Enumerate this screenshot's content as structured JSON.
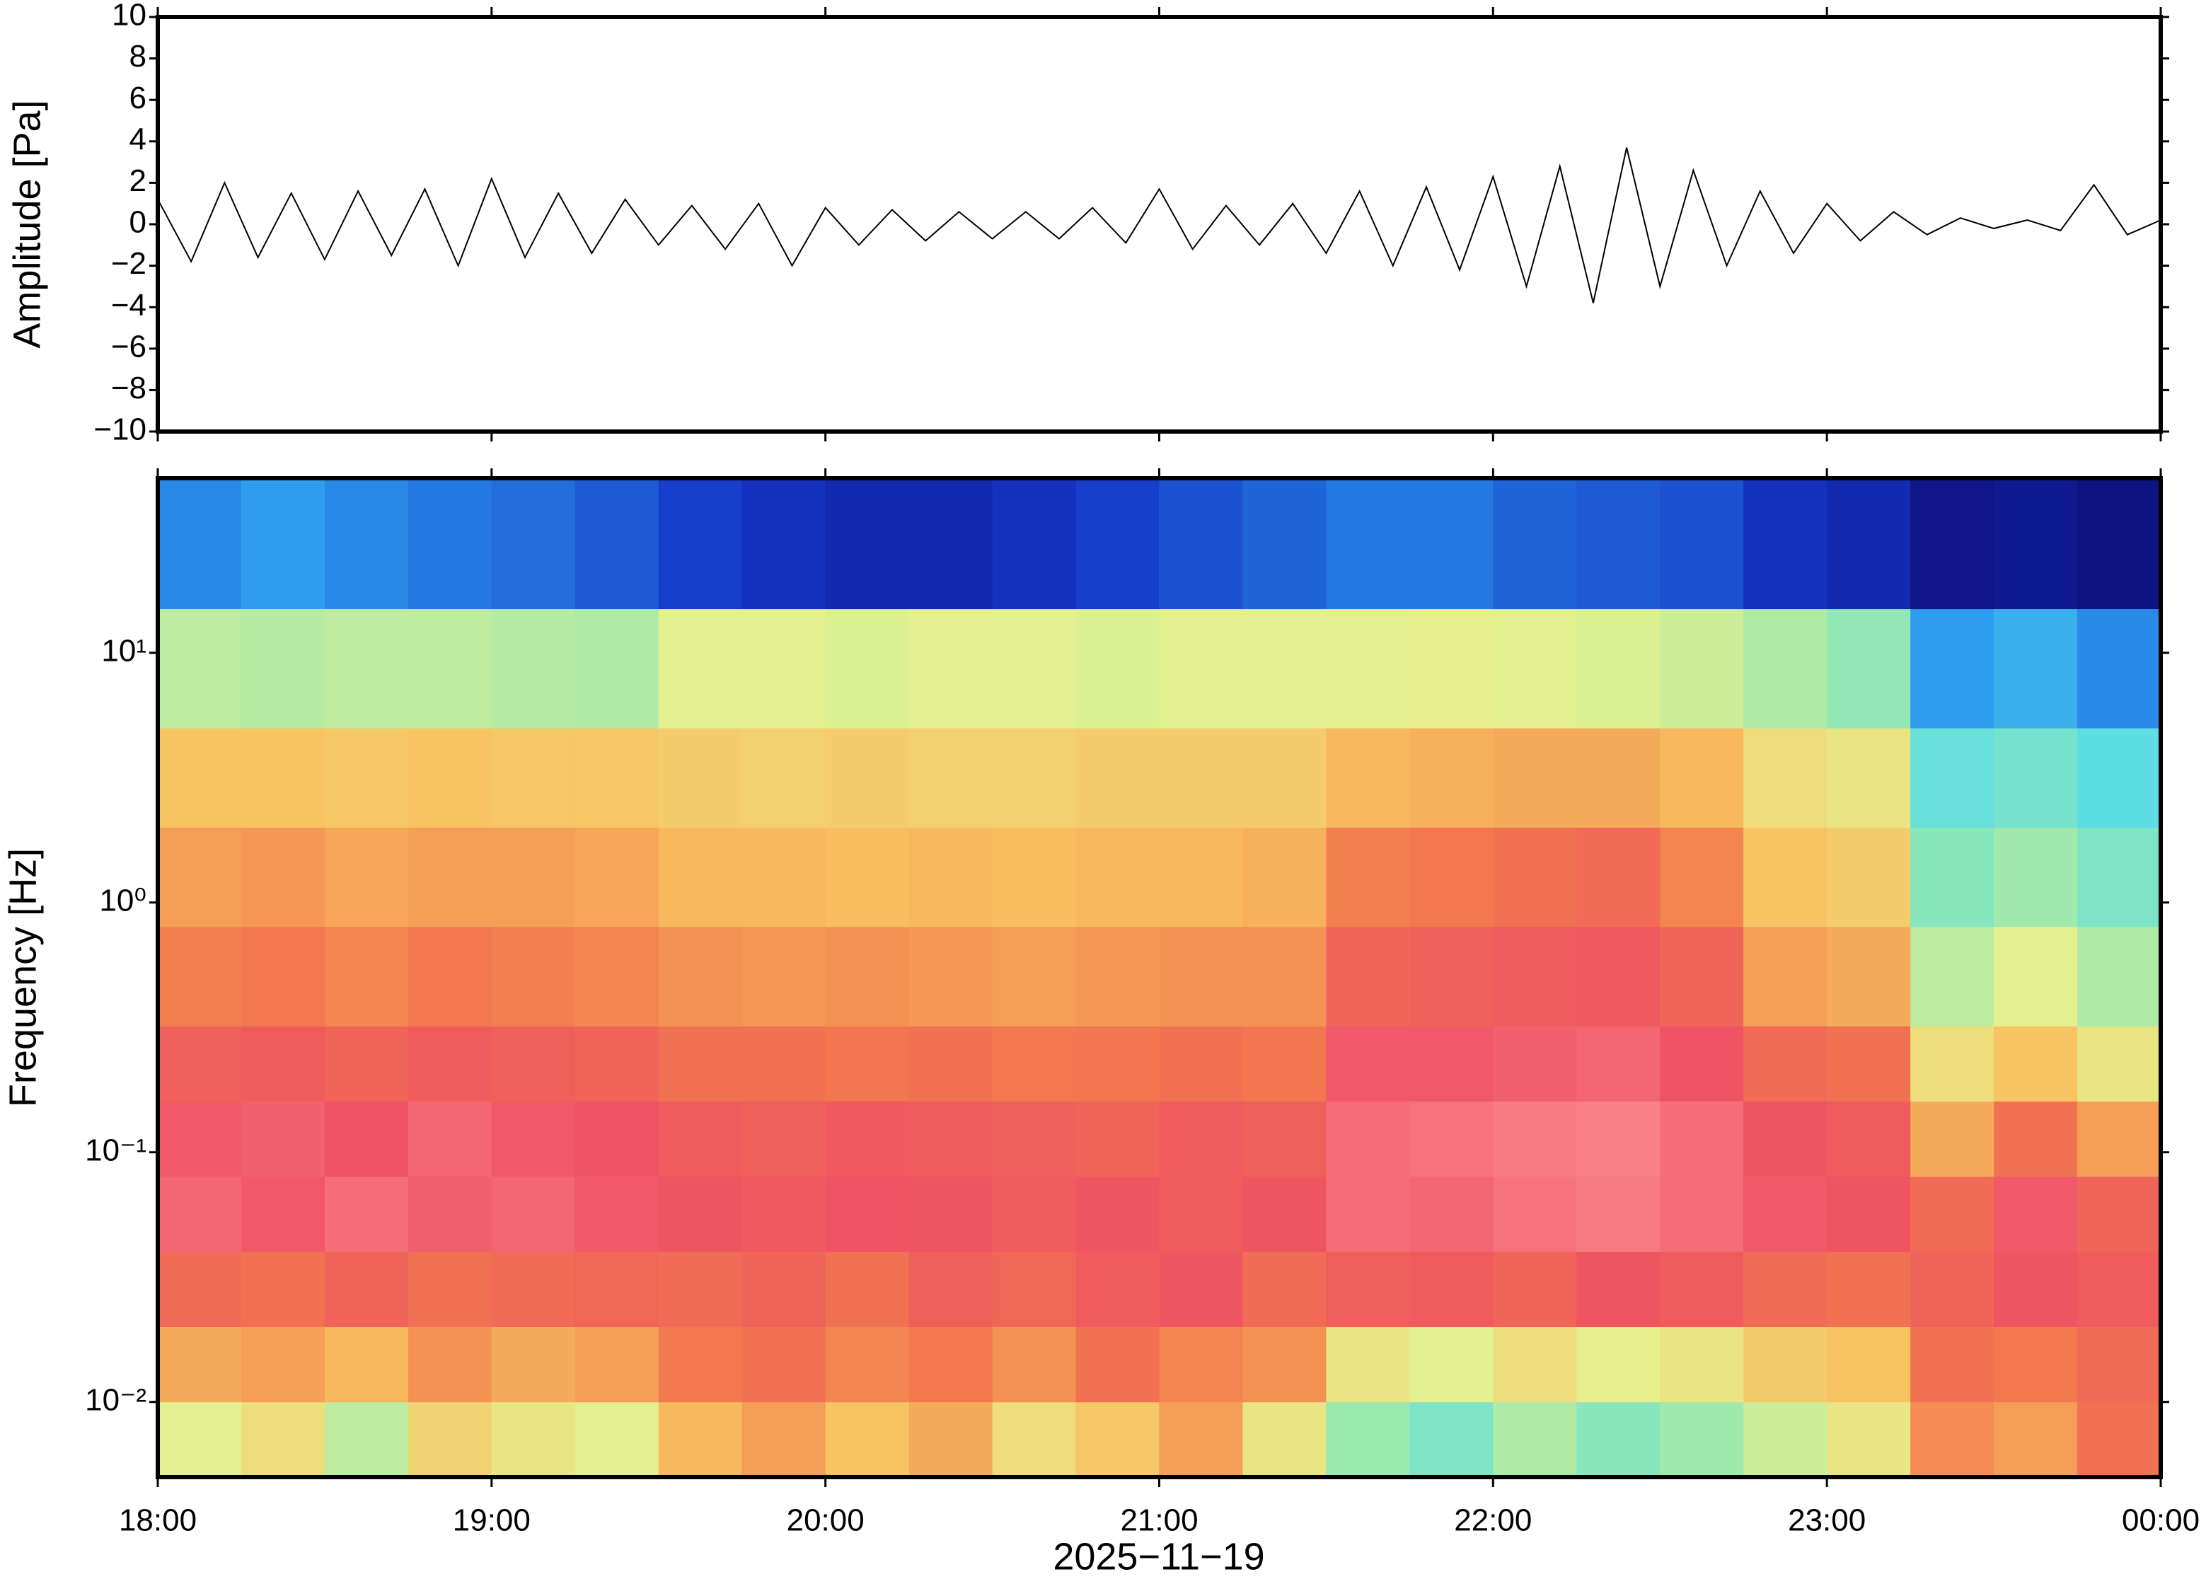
{
  "chart_data": [
    {
      "type": "line",
      "ylabel": "Amplitude [Pa]",
      "color": "#000000",
      "x": [
        18.0,
        18.1,
        18.2,
        18.3,
        18.4,
        18.5,
        18.6,
        18.7,
        18.8,
        18.9,
        19.0,
        19.1,
        19.2,
        19.3,
        19.4,
        19.5,
        19.6,
        19.7,
        19.8,
        19.9,
        20.0,
        20.1,
        20.2,
        20.3,
        20.4,
        20.5,
        20.6,
        20.7,
        20.8,
        20.9,
        21.0,
        21.1,
        21.2,
        21.3,
        21.4,
        21.5,
        21.6,
        21.7,
        21.8,
        21.9,
        22.0,
        22.1,
        22.2,
        22.3,
        22.4,
        22.5,
        22.6,
        22.7,
        22.8,
        22.9,
        23.0,
        23.1,
        23.2,
        23.3,
        23.4,
        23.5,
        23.6,
        23.7,
        23.8,
        23.9,
        24.0
      ],
      "values": [
        1.2,
        -1.8,
        2.0,
        -1.6,
        1.5,
        -1.7,
        1.6,
        -1.5,
        1.7,
        -2.0,
        2.2,
        -1.6,
        1.5,
        -1.4,
        1.2,
        -1.0,
        0.9,
        -1.2,
        1.0,
        -2.0,
        0.8,
        -1.0,
        0.7,
        -0.8,
        0.6,
        -0.7,
        0.6,
        -0.7,
        0.8,
        -0.9,
        1.7,
        -1.2,
        0.9,
        -1.0,
        1.0,
        -1.4,
        1.6,
        -2.0,
        1.8,
        -2.2,
        2.3,
        -3.0,
        2.8,
        -3.8,
        3.7,
        -3.0,
        2.6,
        -2.0,
        1.6,
        -1.4,
        1.0,
        -0.8,
        0.6,
        -0.5,
        0.3,
        -0.2,
        0.2,
        -0.3,
        1.9,
        -0.5,
        0.2
      ],
      "xlim": [
        18,
        24
      ],
      "ylim": [
        -10,
        10
      ],
      "yticks": [
        {
          "value": -10,
          "label": "−10"
        },
        {
          "value": -8,
          "label": "−8"
        },
        {
          "value": -6,
          "label": "−6"
        },
        {
          "value": -4,
          "label": "−4"
        },
        {
          "value": -2,
          "label": "−2"
        },
        0,
        2,
        4,
        6,
        8,
        10
      ]
    },
    {
      "type": "heatmap",
      "ylabel": "Frequency [Hz]",
      "xlabel": "2025−11−19",
      "log_y": true,
      "xlim": [
        18,
        24
      ],
      "ylim": [
        0.005,
        50
      ],
      "xticks": [
        {
          "value": 18,
          "label": "18:00"
        },
        {
          "value": 19,
          "label": "19:00"
        },
        {
          "value": 20,
          "label": "20:00"
        },
        {
          "value": 21,
          "label": "21:00"
        },
        {
          "value": 22,
          "label": "22:00"
        },
        {
          "value": 23,
          "label": "23:00"
        },
        {
          "value": 24,
          "label": "00:00"
        }
      ],
      "yticks": [
        {
          "value": 0.01,
          "label": "10⁻²"
        },
        {
          "value": 0.1,
          "label": "10⁻¹"
        },
        {
          "value": 1,
          "label": "10⁰"
        },
        {
          "value": 10,
          "label": "10¹"
        }
      ],
      "x": [
        18,
        18.25,
        18.5,
        18.75,
        19,
        19.25,
        19.5,
        19.75,
        20,
        20.25,
        20.5,
        20.75,
        21,
        21.25,
        21.5,
        21.75,
        22,
        22.25,
        22.5,
        22.75,
        23,
        23.25,
        23.5,
        23.75,
        24
      ],
      "y": [
        0.005,
        0.01,
        0.02,
        0.04,
        0.08,
        0.16,
        0.32,
        0.8,
        2,
        5,
        15,
        50
      ],
      "zlim": [
        0,
        100
      ],
      "colormap": [
        "#0b0b72",
        "#1535c8",
        "#2f9ff0",
        "#5fdfe2",
        "#94e8b2",
        "#e6f08e",
        "#f8c060",
        "#f27a4e",
        "#ef5262",
        "#ff9a9a"
      ],
      "z": [
        [
          55,
          60,
          50,
          62,
          58,
          55,
          68,
          72,
          66,
          70,
          60,
          65,
          72,
          58,
          45,
          40,
          48,
          42,
          46,
          52,
          58,
          75,
          72,
          80
        ],
        [
          70,
          72,
          68,
          74,
          70,
          72,
          78,
          80,
          76,
          78,
          74,
          80,
          76,
          74,
          58,
          55,
          60,
          56,
          58,
          64,
          66,
          80,
          78,
          82
        ],
        [
          82,
          80,
          84,
          80,
          82,
          83,
          82,
          84,
          80,
          85,
          83,
          86,
          88,
          82,
          85,
          86,
          84,
          88,
          86,
          82,
          80,
          84,
          88,
          86
        ],
        [
          92,
          90,
          93,
          91,
          92,
          90,
          88,
          87,
          89,
          88,
          86,
          88,
          86,
          88,
          93,
          92,
          94,
          95,
          93,
          90,
          88,
          82,
          90,
          84
        ],
        [
          90,
          91,
          89,
          92,
          90,
          89,
          86,
          85,
          87,
          86,
          85,
          84,
          86,
          85,
          93,
          94,
          95,
          96,
          93,
          88,
          86,
          70,
          80,
          72
        ],
        [
          85,
          86,
          84,
          86,
          85,
          84,
          80,
          80,
          79,
          80,
          78,
          79,
          80,
          79,
          90,
          90,
          91,
          92,
          89,
          82,
          80,
          60,
          66,
          58
        ],
        [
          77,
          78,
          76,
          78,
          77,
          76,
          74,
          73,
          74,
          73,
          72,
          73,
          74,
          74,
          84,
          85,
          86,
          87,
          84,
          72,
          70,
          50,
          55,
          48
        ],
        [
          72,
          73,
          71,
          72,
          72,
          71,
          68,
          68,
          67,
          68,
          67,
          68,
          68,
          69,
          77,
          78,
          80,
          82,
          76,
          66,
          64,
          42,
          46,
          40
        ],
        [
          66,
          66,
          65,
          66,
          65,
          65,
          64,
          63,
          64,
          63,
          63,
          64,
          64,
          64,
          68,
          69,
          70,
          70,
          68,
          60,
          58,
          35,
          38,
          33
        ],
        [
          50,
          49,
          50,
          50,
          49,
          48,
          55,
          55,
          54,
          55,
          55,
          54,
          55,
          55,
          55,
          56,
          55,
          54,
          52,
          48,
          44,
          22,
          25,
          20
        ],
        [
          20,
          22,
          20,
          18,
          17,
          15,
          12,
          10,
          8,
          8,
          10,
          12,
          14,
          16,
          18,
          18,
          16,
          15,
          14,
          10,
          8,
          3,
          4,
          2
        ]
      ]
    }
  ]
}
